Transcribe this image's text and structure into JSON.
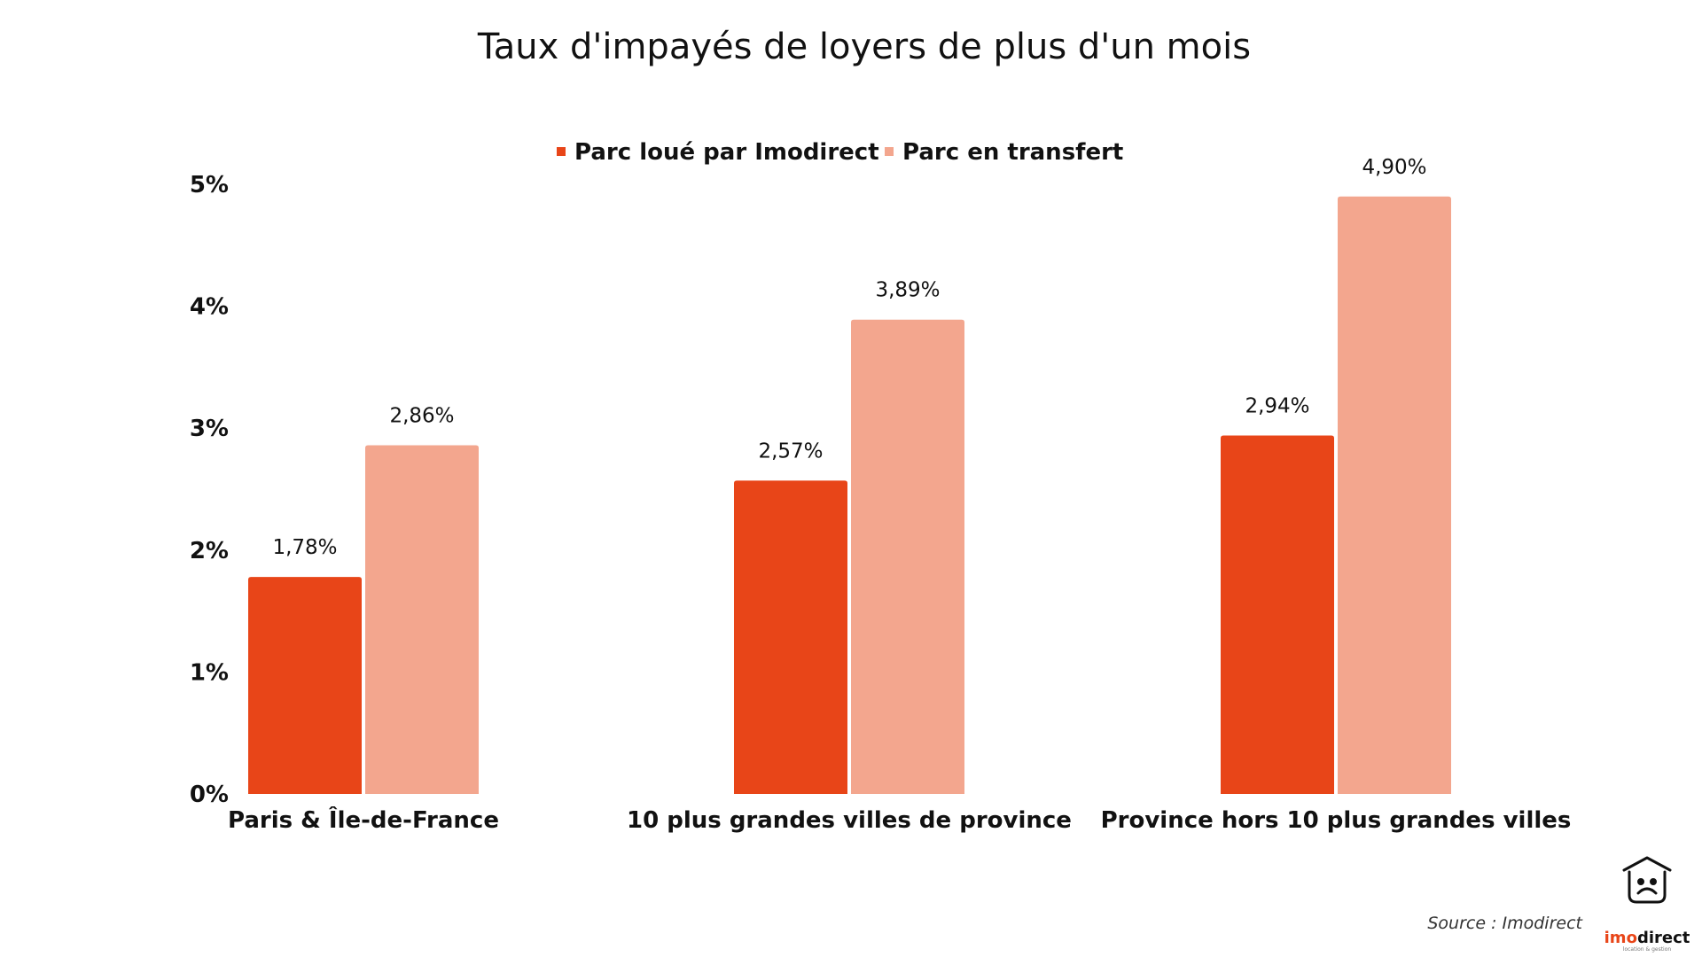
{
  "chart_data": {
    "type": "bar",
    "title": "Taux d'impayés de loyers de plus d'un mois",
    "categories": [
      "Paris & Île-de-France",
      "10 plus grandes villes de province",
      "Province hors 10 plus grandes villes"
    ],
    "series": [
      {
        "name": "Parc loué par Imodirect",
        "values": [
          1.78,
          2.57,
          2.94
        ],
        "labels": [
          "1,78%",
          "2,57%",
          "2,94%"
        ],
        "color": "#e84518"
      },
      {
        "name": "Parc en transfert",
        "values": [
          2.86,
          3.89,
          4.9
        ],
        "labels": [
          "2,86%",
          "3,89%",
          "4,90%"
        ],
        "color": "#f3a68e"
      }
    ],
    "y_ticks": [
      0,
      1,
      2,
      3,
      4,
      5
    ],
    "y_tick_labels": [
      "0%",
      "1%",
      "2%",
      "3%",
      "4%",
      "5%"
    ],
    "ylim": [
      0,
      5
    ],
    "grid": false,
    "legend_position": "top-center"
  },
  "source": "Source : Imodirect",
  "logo": {
    "name": "imodirect-logo-icon",
    "text_imo": "imo",
    "text_direct": "direct",
    "tagline": "location & gestion",
    "color_imo": "#e84518",
    "color_direct": "#111111"
  }
}
